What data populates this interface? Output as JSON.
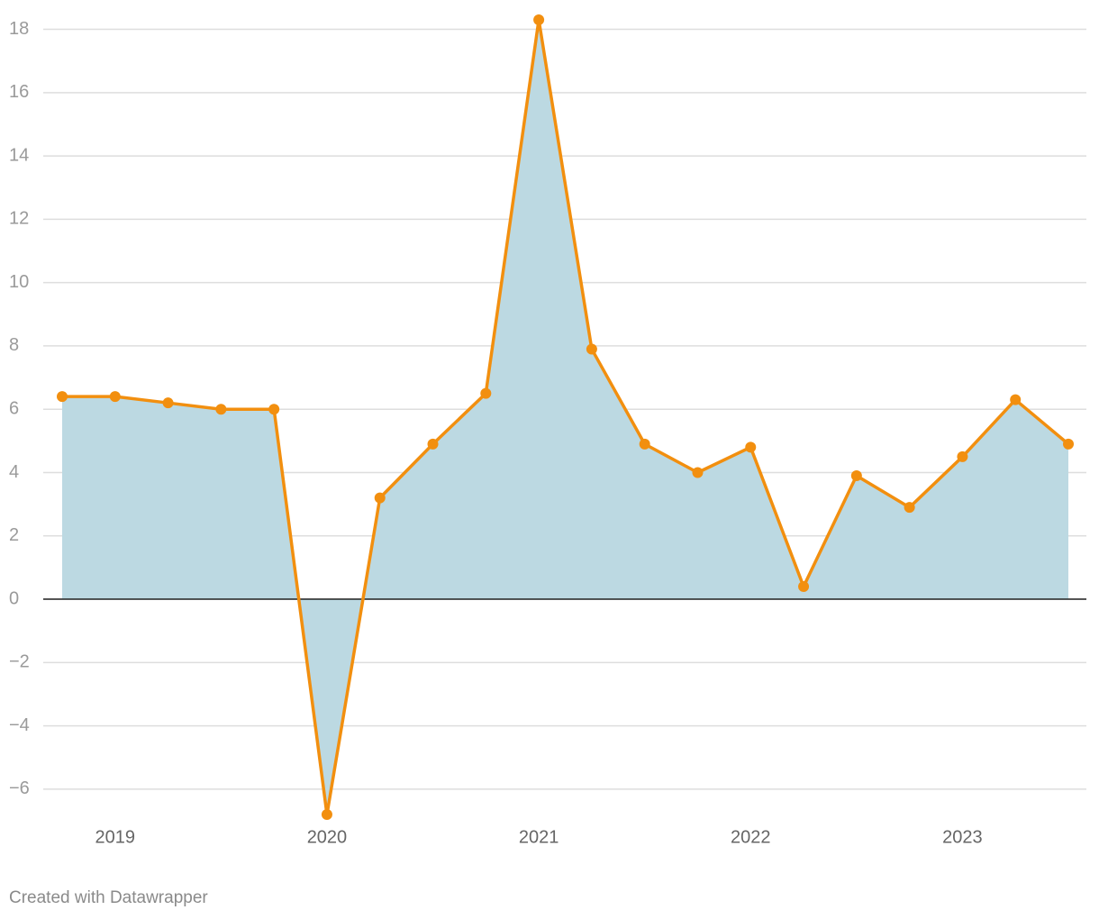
{
  "chart_data": {
    "type": "line",
    "area": true,
    "categories": [
      null,
      "2019",
      null,
      null,
      null,
      "2020",
      null,
      null,
      null,
      "2021",
      null,
      null,
      null,
      "2022",
      null,
      null,
      null,
      "2023",
      null,
      null
    ],
    "values": [
      6.4,
      6.4,
      6.2,
      6.0,
      6.0,
      -6.8,
      3.2,
      4.9,
      6.5,
      18.3,
      7.9,
      4.9,
      4.0,
      4.8,
      0.4,
      3.9,
      2.9,
      4.5,
      6.3,
      4.9
    ],
    "color": "#f28f0f",
    "fill_color": "#bcd9e2",
    "ylim": [
      -6.8,
      18.3
    ],
    "yticks": [
      {
        "value": -6,
        "label": "−6"
      },
      {
        "value": -4,
        "label": "−4"
      },
      {
        "value": -2,
        "label": "−2"
      },
      0,
      2,
      4,
      6,
      8,
      10,
      12,
      14,
      16,
      18
    ],
    "grid": true,
    "credit": "Created with Datawrapper"
  }
}
